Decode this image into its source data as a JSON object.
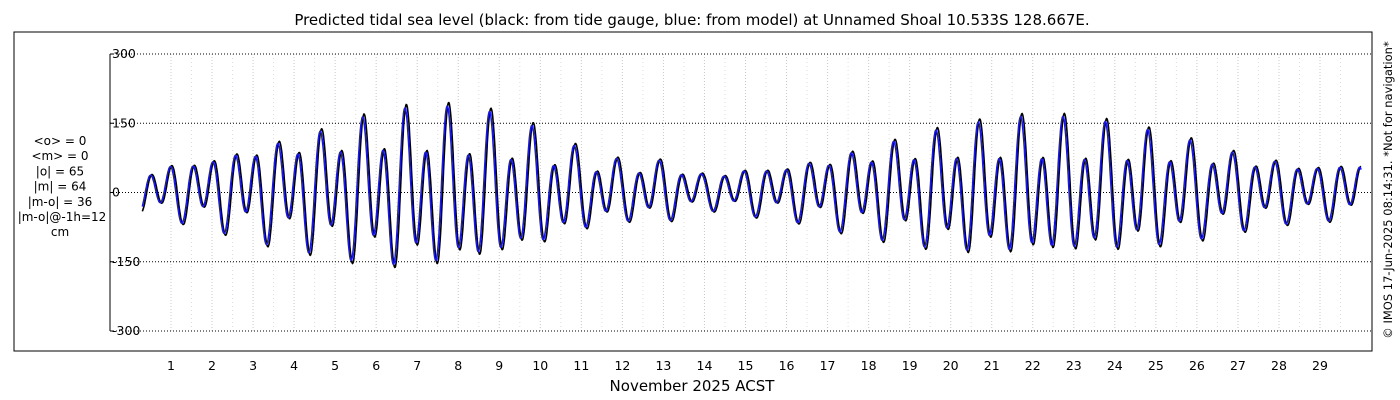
{
  "chart_data": {
    "type": "line",
    "title": "Predicted tidal sea level (black: from tide gauge, blue: from model) at Unnamed Shoal 10.533S 128.667E.",
    "xlabel": "November 2025 ACST",
    "ylabel": "",
    "x_ticks": [
      "1",
      "2",
      "3",
      "4",
      "5",
      "6",
      "7",
      "8",
      "9",
      "10",
      "11",
      "12",
      "13",
      "14",
      "15",
      "16",
      "17",
      "18",
      "19",
      "20",
      "21",
      "22",
      "23",
      "24",
      "25",
      "26",
      "27",
      "28",
      "29"
    ],
    "x_range_days": [
      0.3,
      30.0
    ],
    "y_ticks": [
      300,
      150,
      0,
      -150,
      -300
    ],
    "ylim": [
      -300,
      300
    ],
    "grid": true,
    "series": [
      {
        "color": "#000000",
        "style": "semidiurnal tide with spring/neap modulation",
        "max_amplitude_cm": 180
      },
      {
        "color": "#1a1ad8",
        "style": "semidiurnal tide with spring/neap modulation, ~1h phase lead",
        "max_amplitude_cm": 175
      }
    ],
    "envelope_amplitude_cm": [
      [
        0.3,
        45
      ],
      [
        1,
        62
      ],
      [
        2,
        80
      ],
      [
        3,
        105
      ],
      [
        4,
        125
      ],
      [
        5,
        145
      ],
      [
        6,
        170
      ],
      [
        7,
        178
      ],
      [
        8,
        175
      ],
      [
        9,
        160
      ],
      [
        10,
        130
      ],
      [
        11,
        90
      ],
      [
        12,
        68
      ],
      [
        13,
        70
      ],
      [
        14,
        40
      ],
      [
        15,
        52
      ],
      [
        16,
        60
      ],
      [
        17,
        80
      ],
      [
        18,
        100
      ],
      [
        19,
        120
      ],
      [
        20,
        138
      ],
      [
        21,
        148
      ],
      [
        22,
        155
      ],
      [
        23,
        152
      ],
      [
        24,
        142
      ],
      [
        25,
        128
      ],
      [
        26,
        110
      ],
      [
        27,
        88
      ],
      [
        28,
        72
      ],
      [
        29,
        60
      ],
      [
        30,
        70
      ]
    ],
    "stats": [
      "<o> = 0",
      "<m> = 0",
      "|o| = 65",
      "|m| = 64",
      "|m-o| = 36",
      "|m-o|@-1h=12",
      "cm"
    ],
    "side_note": "© IMOS 17-Jun-2025 08:14:31. *Not for navigation*"
  }
}
